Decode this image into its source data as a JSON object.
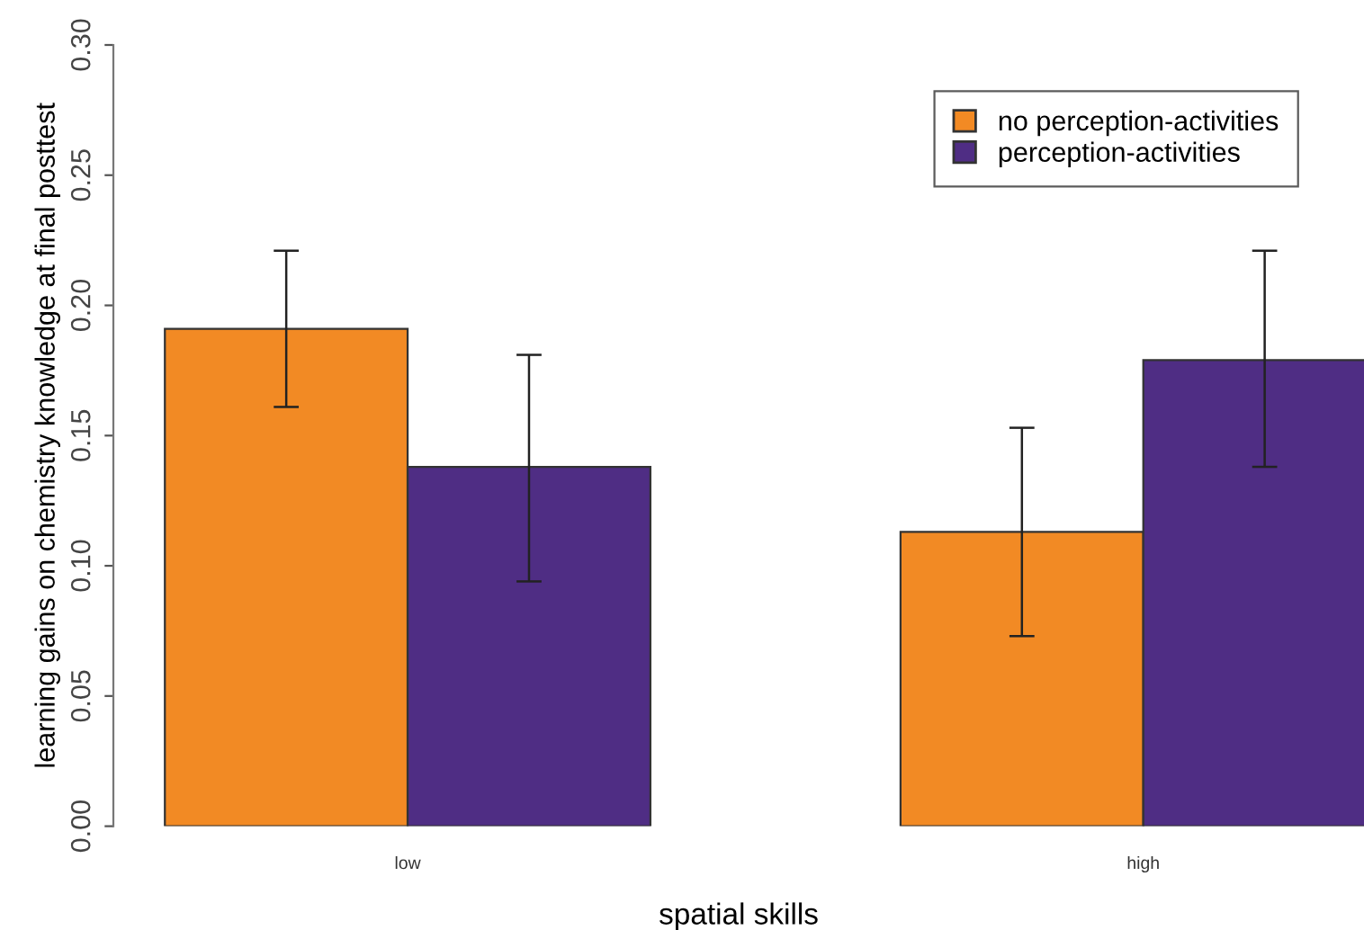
{
  "chart_data": {
    "type": "bar",
    "xlabel": "spatial skills",
    "ylabel": "learning gains on chemistry knowledge at final posttest",
    "categories": [
      "low",
      "high"
    ],
    "series": [
      {
        "name": "no perception-activities",
        "color": "#f28a24",
        "values": [
          0.191,
          0.113
        ],
        "errors": [
          [
            0.161,
            0.221
          ],
          [
            0.073,
            0.153
          ]
        ]
      },
      {
        "name": "perception-activities",
        "color": "#4f2d84",
        "values": [
          0.138,
          0.179
        ],
        "errors": [
          [
            0.094,
            0.181
          ],
          [
            0.138,
            0.221
          ]
        ]
      }
    ],
    "ylim": [
      0,
      0.3
    ],
    "yticks": [
      {
        "value": 0,
        "label": "0.00"
      },
      {
        "value": 0.05,
        "label": "0.05"
      },
      {
        "value": 0.1,
        "label": "0.10"
      },
      {
        "value": 0.15,
        "label": "0.15"
      },
      {
        "value": 0.2,
        "label": "0.20"
      },
      {
        "value": 0.25,
        "label": "0.25"
      },
      {
        "value": 0.3,
        "label": "0.30"
      }
    ],
    "grid": false,
    "legend": "top right"
  }
}
